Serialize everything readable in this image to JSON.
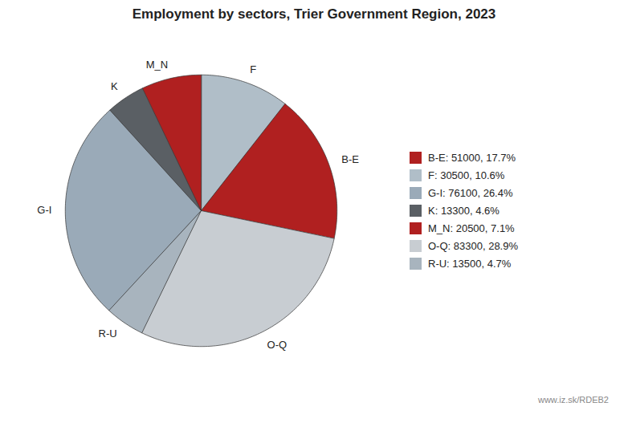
{
  "chart_data": {
    "type": "pie",
    "title": "Employment by sectors, Trier Government Region, 2023",
    "categories": [
      "F",
      "B-E",
      "O-Q",
      "R-U",
      "G-I",
      "K",
      "M_N"
    ],
    "values": [
      30500,
      51000,
      83300,
      13500,
      76100,
      13300,
      20500
    ],
    "colors": [
      "#b0bec8",
      "#b02020",
      "#c8cdd2",
      "#a8b4be",
      "#9aaab8",
      "#5a5f64",
      "#b02020"
    ],
    "legend": "right",
    "legend_entries": [
      {
        "label": "B-E: 51000, 17.7%",
        "color": "#b02020"
      },
      {
        "label": "F: 30500, 10.6%",
        "color": "#b0bec8"
      },
      {
        "label": "G-I: 76100, 26.4%",
        "color": "#9aaab8"
      },
      {
        "label": "K: 13300, 4.6%",
        "color": "#5a5f64"
      },
      {
        "label": "M_N: 20500, 7.1%",
        "color": "#b02020"
      },
      {
        "label": "O-Q: 83300, 28.9%",
        "color": "#c8cdd2"
      },
      {
        "label": "R-U: 13500, 4.7%",
        "color": "#a8b4be"
      }
    ],
    "annotations": [
      "www.iz.sk/RDEB2"
    ]
  }
}
